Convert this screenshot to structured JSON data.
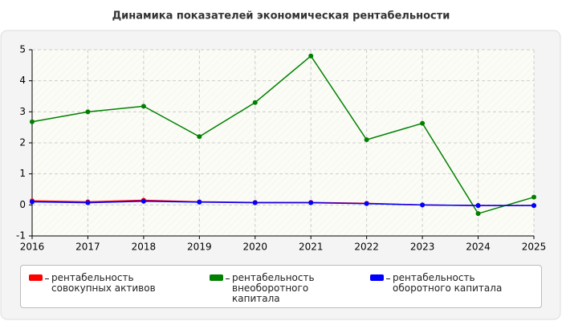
{
  "chart_data": {
    "type": "line",
    "title": "Динамика показателей экономическая рентабельности",
    "x": [
      2016,
      2017,
      2018,
      2019,
      2020,
      2021,
      2022,
      2023,
      2024,
      2025
    ],
    "xlim": [
      2016,
      2025
    ],
    "xticks": [
      2016,
      2017,
      2018,
      2019,
      2020,
      2021,
      2022,
      2023,
      2024,
      2025
    ],
    "ylim": [
      -1,
      5
    ],
    "yticks": [
      -1,
      0,
      1,
      2,
      3,
      4,
      5
    ],
    "grid": true,
    "series": [
      {
        "name": "рентабельность совокупных активов",
        "color": "#ff0000",
        "values": [
          0.13,
          0.1,
          0.15,
          0.1,
          0.08,
          0.08,
          0.05,
          0.0,
          -0.02,
          -0.02
        ]
      },
      {
        "name": "рентабельность внеоборотного капитала",
        "color": "#008000",
        "values": [
          2.68,
          3.0,
          3.18,
          2.2,
          3.3,
          4.8,
          2.1,
          2.63,
          -0.28,
          0.25
        ]
      },
      {
        "name": "рентабельность оборотного капитала",
        "color": "#0000ff",
        "values": [
          0.1,
          0.07,
          0.12,
          0.09,
          0.07,
          0.07,
          0.04,
          0.0,
          -0.02,
          -0.02
        ]
      }
    ]
  }
}
